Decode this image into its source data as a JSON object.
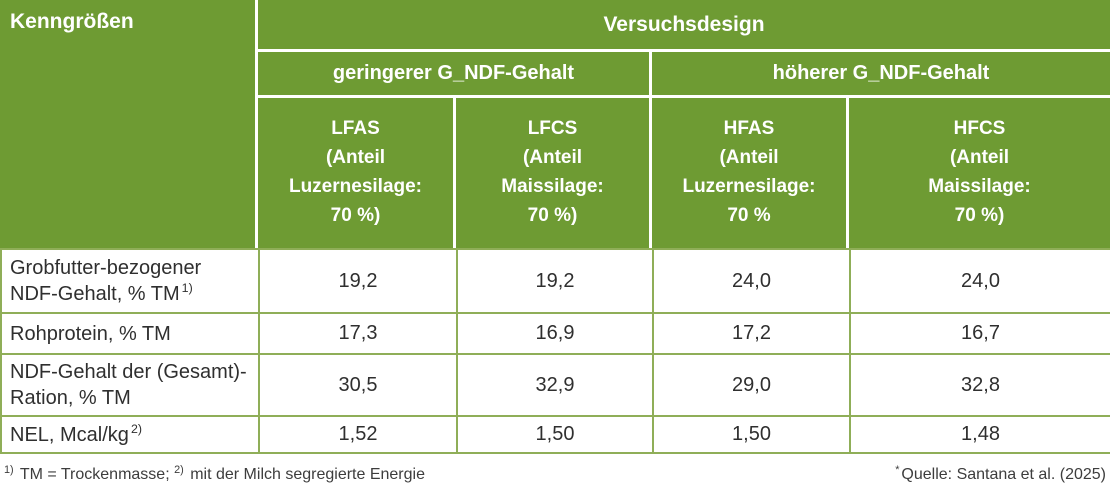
{
  "accent_colors": {
    "header_green": "#6e9b33",
    "body_border_olive": "#8fae58",
    "header_text": "#ffffff",
    "subheader_text": "#f3f1e3"
  },
  "table": {
    "corner_label": "Kenngrößen",
    "title": "Versuchsdesign",
    "groups": [
      {
        "label": "geringerer G_NDF-Gehalt"
      },
      {
        "label": "höherer G_NDF-Gehalt"
      }
    ],
    "columns": [
      {
        "label": "LFAS\n(Anteil\nLuzernesilage:\n70 %)"
      },
      {
        "label": "LFCS\n(Anteil\nMaissilage:\n70 %)"
      },
      {
        "label": "HFAS\n(Anteil\nLuzernesilage:\n70 %"
      },
      {
        "label": "HFCS\n(Anteil\nMaissilage:\n70 %)"
      }
    ],
    "rows": [
      {
        "label": "Grobfutter-bezogener NDF-Gehalt, % TM",
        "sup": "1)",
        "values": [
          "19,2",
          "19,2",
          "24,0",
          "24,0"
        ]
      },
      {
        "label": "Rohprotein, % TM",
        "sup": "",
        "values": [
          "17,3",
          "16,9",
          "17,2",
          "16,7"
        ]
      },
      {
        "label": "NDF-Gehalt der (Gesamt)-Ration, % TM",
        "sup": "",
        "values": [
          "30,5",
          "32,9",
          "29,0",
          "32,8"
        ]
      },
      {
        "label": "NEL, Mcal/kg",
        "sup": "2)",
        "values": [
          "1,52",
          "1,50",
          "1,50",
          "1,48"
        ]
      }
    ]
  },
  "footer": {
    "fn1_sup": "1)",
    "fn1_text": " TM = Trockenmasse; ",
    "fn2_sup": "2)",
    "fn2_text": " mit der Milch segregierte Energie",
    "source_sup": "*",
    "source_text": "Quelle: Santana et al. (2025)"
  },
  "chart_data": {
    "type": "table",
    "title": "Versuchsdesign",
    "row_header": "Kenngrößen",
    "column_groups": [
      {
        "label": "geringerer G_NDF-Gehalt",
        "spans": [
          "LFAS",
          "LFCS"
        ]
      },
      {
        "label": "höherer G_NDF-Gehalt",
        "spans": [
          "HFAS",
          "HFCS"
        ]
      }
    ],
    "columns": [
      "LFAS (Anteil Luzernesilage: 70 %)",
      "LFCS (Anteil Maissilage: 70 %)",
      "HFAS (Anteil Luzernesilage: 70 %",
      "HFCS (Anteil Maissilage: 70 %)"
    ],
    "rows": [
      {
        "label": "Grobfutter-bezogener NDF-Gehalt, % TM 1)",
        "values": [
          19.2,
          19.2,
          24.0,
          24.0
        ]
      },
      {
        "label": "Rohprotein, % TM",
        "values": [
          17.3,
          16.9,
          17.2,
          16.7
        ]
      },
      {
        "label": "NDF-Gehalt der (Gesamt)-Ration, % TM",
        "values": [
          30.5,
          32.9,
          29.0,
          32.8
        ]
      },
      {
        "label": "NEL, Mcal/kg 2)",
        "values": [
          1.52,
          1.5,
          1.5,
          1.48
        ]
      }
    ],
    "footnotes": "1) TM = Trockenmasse; 2) mit der Milch segregierte Energie",
    "source": "*Quelle: Santana et al. (2025)"
  }
}
